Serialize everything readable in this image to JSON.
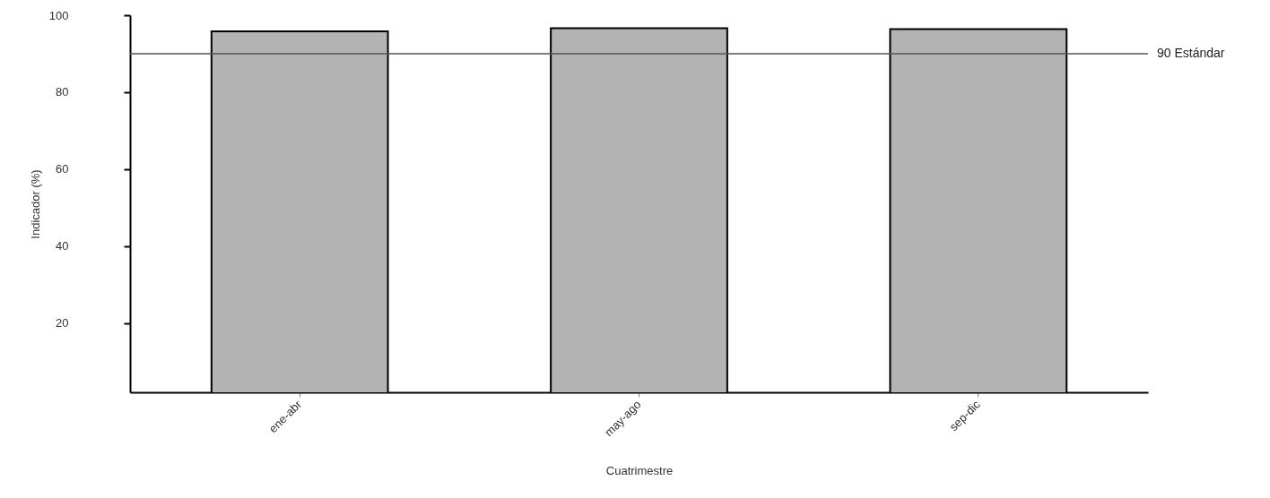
{
  "chart_data": {
    "type": "bar",
    "categories": [
      "ene-abr",
      "may-ago",
      "sep-dic"
    ],
    "values": [
      95.8,
      96.6,
      96.4
    ],
    "color": "#b3b3b3",
    "xlabel": "Cuatrimestre",
    "ylabel": "Indicador (%)",
    "ylim": [
      2,
      100
    ],
    "yticks": [
      20,
      40,
      60,
      80,
      100
    ],
    "ref_lines": [
      {
        "axis": "y",
        "value": 90,
        "label": "90 Estándar",
        "color": "#555555"
      }
    ]
  }
}
